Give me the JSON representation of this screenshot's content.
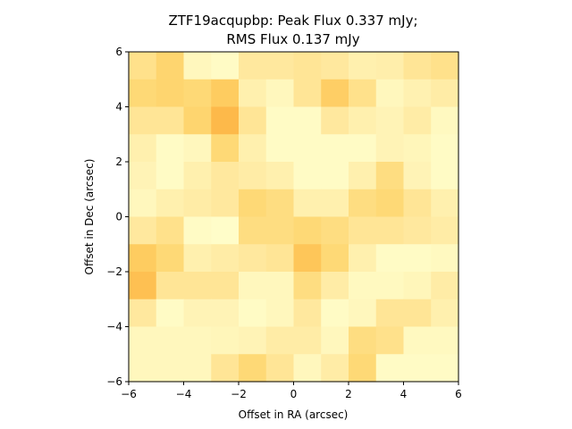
{
  "chart_data": {
    "type": "heatmap",
    "title_lines": [
      "ZTF19acqupbp: Peak Flux 0.337 mJy;",
      "RMS Flux 0.137 mJy"
    ],
    "xlabel": "Offset in RA (arcsec)",
    "ylabel": "Offset in Dec (arcsec)",
    "xlim": [
      -6,
      6
    ],
    "ylim": [
      -6,
      6
    ],
    "xticks": [
      "−6",
      "−4",
      "−2",
      "0",
      "2",
      "4",
      "6"
    ],
    "yticks": [
      "−6",
      "−4",
      "−2",
      "0",
      "2",
      "4",
      "6"
    ],
    "xtick_values": [
      -6,
      -4,
      -2,
      0,
      2,
      4,
      6
    ],
    "ytick_values": [
      -6,
      -4,
      -2,
      0,
      2,
      4,
      6
    ],
    "colormap": "YlOrRd (low end)",
    "color_stops": [
      "#ffffcc",
      "#fff2b3",
      "#ffe699",
      "#fed976",
      "#feca5e",
      "#fdb545",
      "#fd9a38"
    ],
    "grid": false,
    "row_order": "top-to-bottom",
    "values": [
      [
        0.4,
        0.55,
        0.1,
        0.05,
        0.3,
        0.3,
        0.35,
        0.3,
        0.2,
        0.22,
        0.35,
        0.4
      ],
      [
        0.5,
        0.55,
        0.5,
        0.65,
        0.2,
        0.1,
        0.35,
        0.62,
        0.4,
        0.1,
        0.18,
        0.25
      ],
      [
        0.35,
        0.35,
        0.55,
        0.8,
        0.35,
        0.05,
        0.05,
        0.3,
        0.2,
        0.15,
        0.25,
        0.08
      ],
      [
        0.2,
        0.05,
        0.1,
        0.5,
        0.2,
        0.05,
        0.05,
        0.05,
        0.05,
        0.15,
        0.12,
        0.05
      ],
      [
        0.15,
        0.05,
        0.2,
        0.3,
        0.25,
        0.2,
        0.05,
        0.05,
        0.2,
        0.45,
        0.15,
        0.05
      ],
      [
        0.1,
        0.2,
        0.25,
        0.3,
        0.5,
        0.45,
        0.2,
        0.2,
        0.45,
        0.5,
        0.35,
        0.2
      ],
      [
        0.3,
        0.4,
        0.05,
        0.02,
        0.45,
        0.45,
        0.5,
        0.45,
        0.35,
        0.35,
        0.3,
        0.25
      ],
      [
        0.65,
        0.5,
        0.2,
        0.25,
        0.3,
        0.35,
        0.7,
        0.5,
        0.2,
        0.05,
        0.05,
        0.08
      ],
      [
        0.75,
        0.35,
        0.35,
        0.35,
        0.1,
        0.1,
        0.45,
        0.25,
        0.08,
        0.08,
        0.12,
        0.25
      ],
      [
        0.3,
        0.05,
        0.15,
        0.15,
        0.05,
        0.1,
        0.3,
        0.05,
        0.1,
        0.35,
        0.35,
        0.2
      ],
      [
        0.1,
        0.1,
        0.1,
        0.12,
        0.15,
        0.25,
        0.25,
        0.1,
        0.45,
        0.4,
        0.08,
        0.08
      ],
      [
        0.1,
        0.1,
        0.1,
        0.35,
        0.5,
        0.35,
        0.1,
        0.25,
        0.5,
        0.05,
        0.05,
        0.05
      ]
    ]
  }
}
